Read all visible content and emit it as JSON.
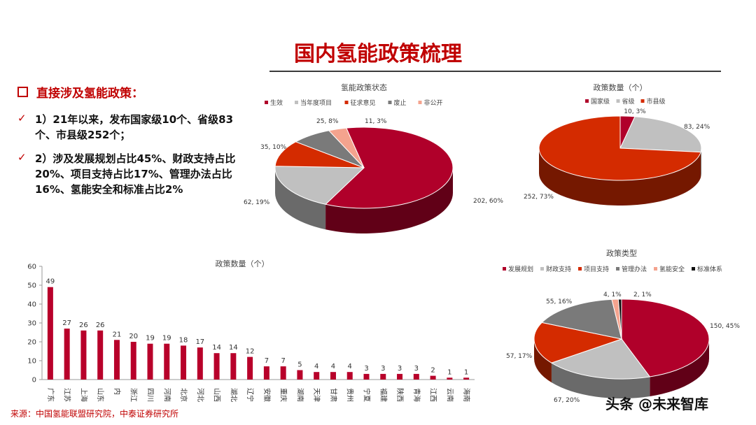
{
  "page": {
    "title": "国内氢能政策梳理",
    "heading": "直接涉及氢能政策：",
    "points": [
      "1）21年以来，发布国家级10个、省级83个、市县级252个；",
      "2）涉及发展规划占比45%、财政支持占比20%、项目支持占比17%、管理办法占比16%、氢能安全和标准占比2%"
    ],
    "check_mark": "✓",
    "source": "来源：中国氢能联盟研究院，中泰证券研究所",
    "watermark": "头条 @未来智库"
  },
  "chart_data": [
    {
      "type": "pie",
      "title": "氢能政策状态",
      "labels": [
        "生效",
        "当年度项目",
        "征求意见",
        "废止",
        "非公开"
      ],
      "values": [
        202,
        62,
        35,
        25,
        11
      ],
      "percent_labels": [
        "202, 60%",
        "62, 19%",
        "35, 10%",
        "25, 8%",
        "11, 3%"
      ],
      "colors": [
        "#b0002a",
        "#c0c0c0",
        "#d42b00",
        "#7a7a7a",
        "#f4a38e"
      ],
      "legend": "top"
    },
    {
      "type": "pie",
      "title": "政策数量（个）",
      "labels": [
        "国家级",
        "省级",
        "市县级"
      ],
      "values": [
        10,
        83,
        252
      ],
      "percent_labels": [
        "10, 3%",
        "83, 24%",
        "252, 73%"
      ],
      "colors": [
        "#b0002a",
        "#c0c0c0",
        "#d42b00"
      ],
      "legend": "top"
    },
    {
      "type": "bar",
      "title": "政策数量（个）",
      "categories": [
        "广东",
        "江苏",
        "上海",
        "山东",
        "内",
        "浙江",
        "四川",
        "河南",
        "北京",
        "河北",
        "山西",
        "湖北",
        "辽宁",
        "安徽",
        "重庆",
        "湖南",
        "天津",
        "甘肃",
        "贵州",
        "宁夏",
        "福建",
        "陕西",
        "青海",
        "江西",
        "云南",
        "海南"
      ],
      "values": [
        49,
        27,
        26,
        26,
        21,
        20,
        19,
        19,
        18,
        17,
        14,
        14,
        12,
        7,
        7,
        5,
        4,
        4,
        4,
        3,
        3,
        3,
        3,
        2,
        1,
        1
      ],
      "ylim": [
        0,
        60
      ],
      "yticks": [
        "0",
        "10",
        "20",
        "30",
        "40",
        "50",
        "60"
      ],
      "color": "#b8002a",
      "grid": false
    },
    {
      "type": "pie",
      "title": "政策类型",
      "labels": [
        "发展规划",
        "财政支持",
        "项目支持",
        "管理办法",
        "氢能安全",
        "标准体系"
      ],
      "values": [
        150,
        67,
        57,
        55,
        4,
        2
      ],
      "percent_labels": [
        "150, 45%",
        "67, 20%",
        "57, 17%",
        "55, 16%",
        "4, 1%",
        "2, 1%"
      ],
      "colors": [
        "#b0002a",
        "#c0c0c0",
        "#d42b00",
        "#7a7a7a",
        "#f4a38e",
        "#111111"
      ],
      "legend": "top"
    }
  ]
}
